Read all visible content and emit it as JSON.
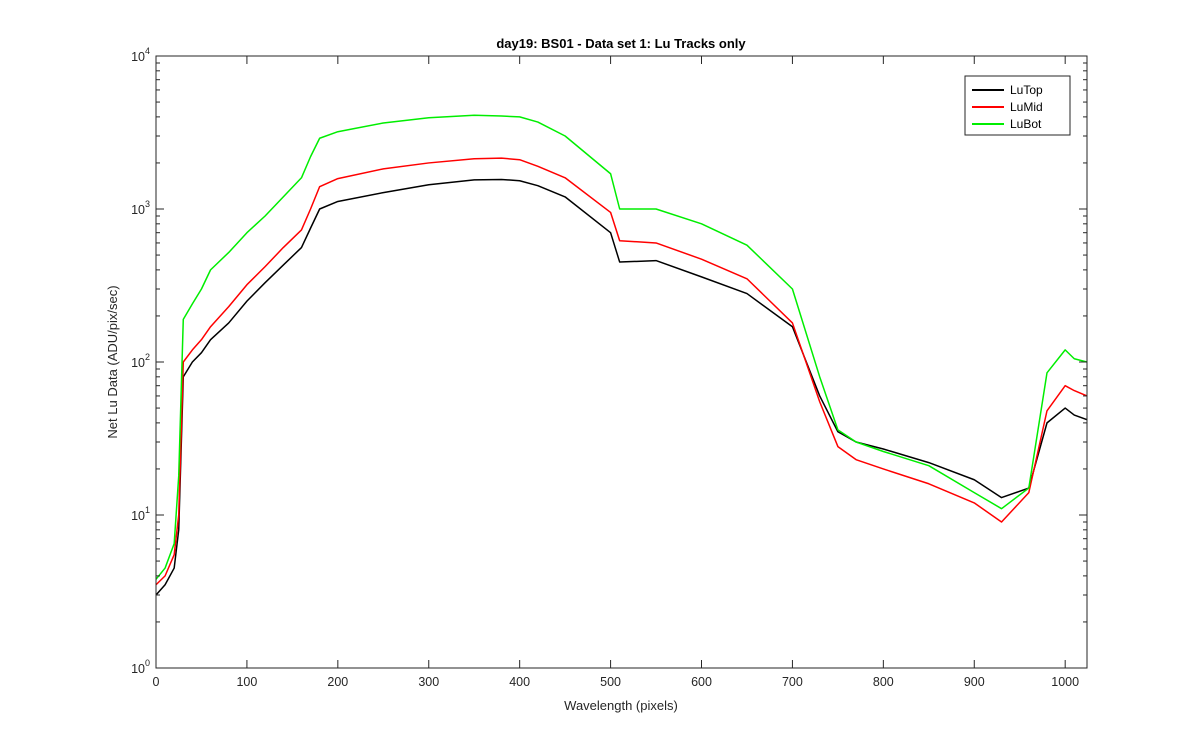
{
  "chart_data": {
    "type": "line",
    "title": "day19: BS01 - Data set 1: Lu Tracks only",
    "xlabel": "Wavelength (pixels)",
    "ylabel": "Net Lu Data (ADU/pix/sec)",
    "xlim": [
      0,
      1024
    ],
    "ylim": [
      1,
      10000
    ],
    "yscale": "log",
    "grid": false,
    "legend_position": "top-right",
    "x_ticks": [
      0,
      100,
      200,
      300,
      400,
      500,
      600,
      700,
      800,
      900,
      1000
    ],
    "y_ticks": [
      {
        "value": 1,
        "base": "10",
        "exp": "0"
      },
      {
        "value": 10,
        "base": "10",
        "exp": "1"
      },
      {
        "value": 100,
        "base": "10",
        "exp": "2"
      },
      {
        "value": 1000,
        "base": "10",
        "exp": "3"
      },
      {
        "value": 10000,
        "base": "10",
        "exp": "4"
      }
    ],
    "x": [
      0,
      10,
      20,
      25,
      30,
      40,
      50,
      60,
      80,
      100,
      120,
      140,
      160,
      170,
      180,
      200,
      250,
      300,
      350,
      380,
      400,
      420,
      450,
      500,
      510,
      550,
      600,
      650,
      700,
      730,
      750,
      770,
      800,
      850,
      900,
      930,
      960,
      980,
      1000,
      1010,
      1024
    ],
    "series": [
      {
        "name": "LuTop",
        "color": "#000000",
        "values": [
          3.0,
          3.5,
          4.5,
          8,
          80,
          100,
          115,
          140,
          180,
          250,
          330,
          430,
          560,
          750,
          1000,
          1120,
          1280,
          1440,
          1550,
          1560,
          1530,
          1420,
          1200,
          700,
          450,
          460,
          360,
          280,
          170,
          60,
          35,
          30,
          27,
          22,
          17,
          13,
          15,
          40,
          50,
          45,
          42
        ]
      },
      {
        "name": "LuMid",
        "color": "#ff0000",
        "values": [
          3.5,
          4.0,
          5.5,
          10,
          100,
          120,
          140,
          170,
          230,
          320,
          420,
          560,
          730,
          1000,
          1400,
          1580,
          1830,
          2000,
          2130,
          2150,
          2100,
          1900,
          1600,
          950,
          620,
          600,
          470,
          350,
          180,
          55,
          28,
          23,
          20,
          16,
          12,
          9,
          14,
          48,
          70,
          65,
          60
        ]
      },
      {
        "name": "LuBot",
        "color": "#00ee00",
        "values": [
          3.8,
          4.5,
          6.5,
          18,
          190,
          240,
          300,
          400,
          520,
          700,
          900,
          1200,
          1600,
          2200,
          2900,
          3200,
          3650,
          3950,
          4100,
          4050,
          4000,
          3700,
          3000,
          1700,
          1000,
          1000,
          800,
          580,
          300,
          80,
          36,
          30,
          26,
          21,
          14,
          11,
          15,
          85,
          120,
          105,
          100
        ]
      }
    ]
  }
}
